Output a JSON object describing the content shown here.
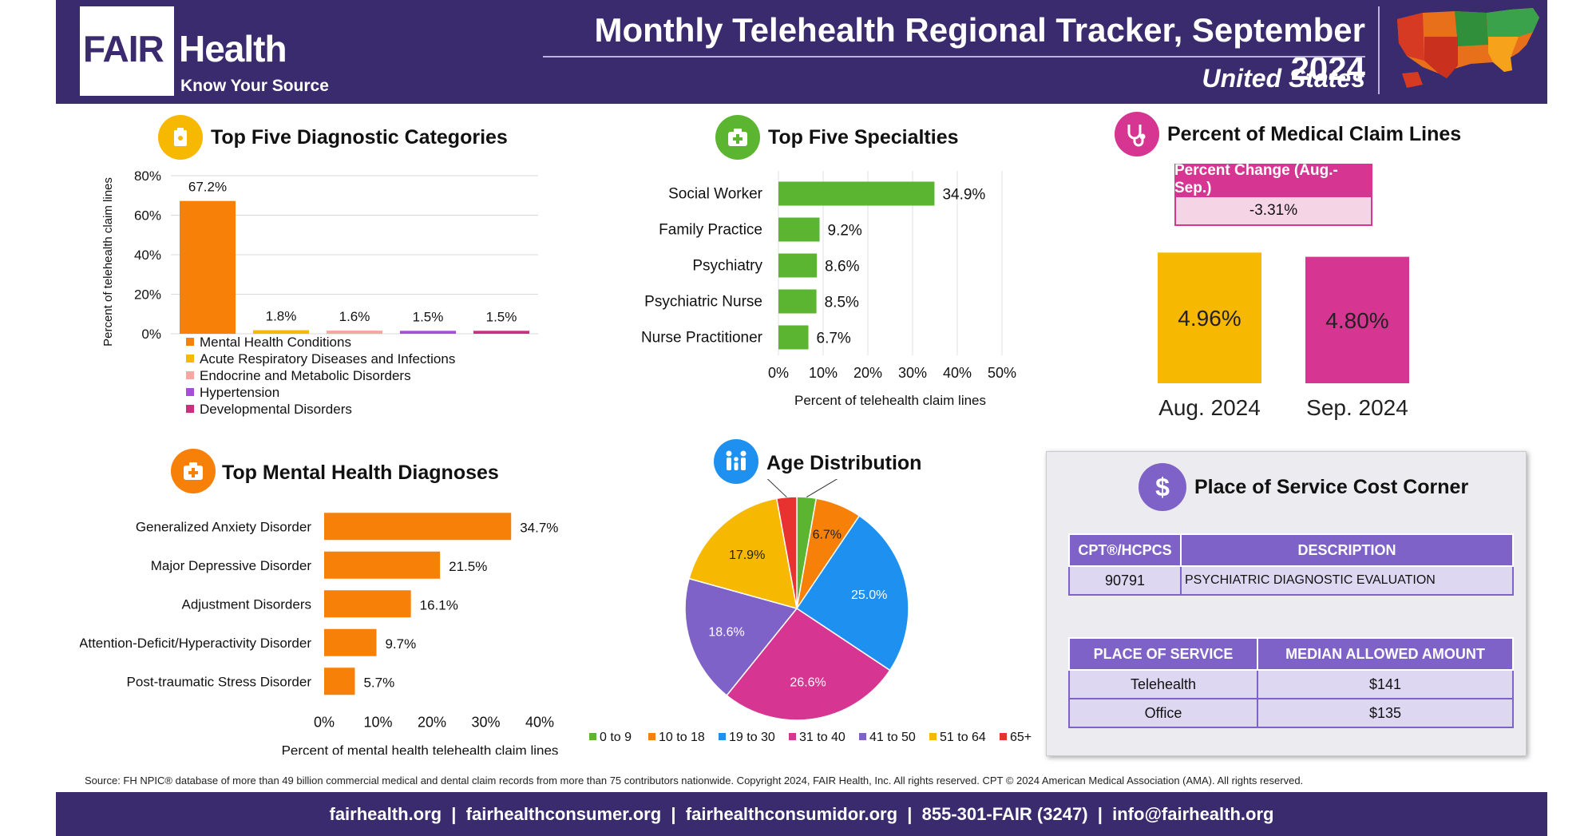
{
  "header": {
    "logo_fair": "FAIR",
    "logo_health": "Health",
    "logo_tagline": "Know Your Source",
    "title": "Monthly Telehealth Regional Tracker, September 2024",
    "region": "United States"
  },
  "colors": {
    "header_bg": "#3a2a6e",
    "orange": "#f78009",
    "green": "#5cb531",
    "magenta": "#d63591",
    "gold": "#f6b800",
    "purple": "#7f62c8"
  },
  "sections": {
    "diag_title": "Top Five Diagnostic Categories",
    "spec_title": "Top Five Specialties",
    "claims_title": "Percent of Medical Claim Lines",
    "mental_title": "Top Mental Health Diagnoses",
    "age_title": "Age Distribution",
    "cost_title": "Place of Service Cost Corner"
  },
  "claim_change": {
    "label": "Percent Change (Aug.-Sep.)",
    "value": "-3.31%"
  },
  "cost_corner": {
    "code_header": "CPT®/HCPCS",
    "desc_header": "DESCRIPTION",
    "code": "90791",
    "description": "PSYCHIATRIC DIAGNOSTIC EVALUATION",
    "place_header": "PLACE OF SERVICE",
    "amount_header": "MEDIAN ALLOWED AMOUNT",
    "rows": [
      {
        "place": "Telehealth",
        "amount": "$141"
      },
      {
        "place": "Office",
        "amount": "$135"
      }
    ]
  },
  "source_text": "Source: FH NPIC® database of more than 49 billion commercial medical and dental claim records from more than 75 contributors nationwide. Copyright 2024, FAIR Health, Inc. All rights reserved. CPT © 2024 American Medical Association (AMA). All rights reserved.",
  "footer_text": "fairhealth.org  |  fairhealthconsumer.org  |  fairhealthconsumidor.org  |  855-301-FAIR (3247)  |  info@fairhealth.org",
  "chart_data": [
    {
      "type": "bar",
      "id": "diagnostic",
      "title": "Top Five Diagnostic Categories",
      "ylabel": "Percent of telehealth claim lines",
      "ylim": [
        0,
        80
      ],
      "yticks": [
        "0%",
        "20%",
        "40%",
        "60%",
        "80%"
      ],
      "series": [
        {
          "name": "Mental Health Conditions",
          "value": 67.2,
          "label": "67.2%",
          "color": "#f78009"
        },
        {
          "name": "Acute Respiratory Diseases and Infections",
          "value": 1.8,
          "label": "1.8%",
          "color": "#f6b800"
        },
        {
          "name": "Endocrine and Metabolic Disorders",
          "value": 1.6,
          "label": "1.6%",
          "color": "#f4a9a0"
        },
        {
          "name": "Hypertension",
          "value": 1.5,
          "label": "1.5%",
          "color": "#a64fd6"
        },
        {
          "name": "Developmental Disorders",
          "value": 1.5,
          "label": "1.5%",
          "color": "#c9307f"
        }
      ],
      "legend": "bottom",
      "grid": true
    },
    {
      "type": "bar",
      "orientation": "horizontal",
      "id": "specialties",
      "title": "Top Five Specialties",
      "categories": [
        "Social Worker",
        "Family Practice",
        "Psychiatry",
        "Psychiatric Nurse",
        "Nurse Practitioner"
      ],
      "values": [
        34.9,
        9.2,
        8.6,
        8.5,
        6.7
      ],
      "labels": [
        "34.9%",
        "9.2%",
        "8.6%",
        "8.5%",
        "6.7%"
      ],
      "xlabel": "Percent of telehealth claim lines",
      "xlim": [
        0,
        50
      ],
      "xticks": [
        "0%",
        "10%",
        "20%",
        "30%",
        "40%",
        "50%"
      ],
      "color": "#5cb531",
      "grid": true
    },
    {
      "type": "bar",
      "id": "claim_lines",
      "title": "Percent of Medical Claim Lines",
      "categories": [
        "Aug. 2024",
        "Sep. 2024"
      ],
      "values": [
        4.96,
        4.8
      ],
      "labels": [
        "4.96%",
        "4.80%"
      ],
      "colors": [
        "#f6b800",
        "#d63591"
      ]
    },
    {
      "type": "bar",
      "orientation": "horizontal",
      "id": "mental_health",
      "title": "Top Mental Health Diagnoses",
      "categories": [
        "Generalized Anxiety Disorder",
        "Major Depressive Disorder",
        "Adjustment Disorders",
        "Attention-Deficit/Hyperactivity Disorder",
        "Post-traumatic Stress Disorder"
      ],
      "values": [
        34.7,
        21.5,
        16.1,
        9.7,
        5.7
      ],
      "labels": [
        "34.7%",
        "21.5%",
        "16.1%",
        "9.7%",
        "5.7%"
      ],
      "xlabel": "Percent of mental health telehealth claim lines",
      "xlim": [
        0,
        40
      ],
      "xticks": [
        "0%",
        "10%",
        "20%",
        "30%",
        "40%"
      ],
      "color": "#f78009"
    },
    {
      "type": "pie",
      "id": "age",
      "title": "Age Distribution",
      "series": [
        {
          "name": "0 to 9",
          "value": 2.8,
          "label": "2.8%",
          "color": "#5cb531"
        },
        {
          "name": "10 to 18",
          "value": 6.7,
          "label": "6.7%",
          "color": "#f78009"
        },
        {
          "name": "19 to 30",
          "value": 25.0,
          "label": "25.0%",
          "color": "#1e90f0"
        },
        {
          "name": "31 to 40",
          "value": 26.6,
          "label": "26.6%",
          "color": "#d63591"
        },
        {
          "name": "41 to 50",
          "value": 18.6,
          "label": "18.6%",
          "color": "#7f62c8"
        },
        {
          "name": "51 to 64",
          "value": 17.9,
          "label": "17.9%",
          "color": "#f6b800"
        },
        {
          "name": "65+",
          "value": 2.9,
          "label": "2.9%",
          "color": "#e8322f"
        }
      ],
      "legend": "bottom"
    }
  ]
}
